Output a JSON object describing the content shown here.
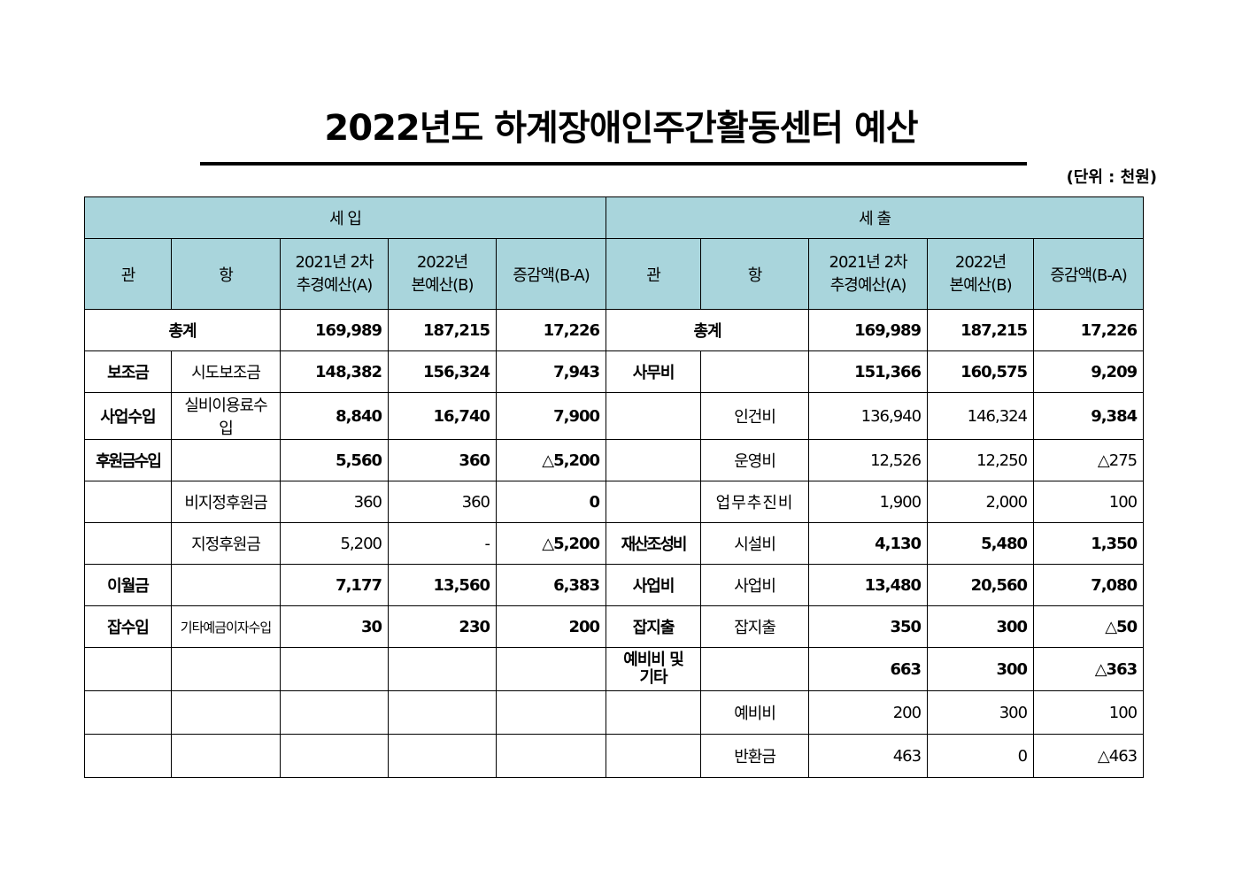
{
  "title": "2022년도 하계장애인주간활동센터 예산",
  "unit": "(단위 : 천원)",
  "headers": {
    "income": "세 입",
    "expense": "세 출",
    "gwan": "관",
    "hang": "항",
    "col_a": "2021년 2차\n추경예산(A)",
    "col_b": "2022년\n본예산(B)",
    "col_diff": "증감액(B-A)"
  },
  "total": {
    "in_label": "총계",
    "in_a": "169,989",
    "in_b": "187,215",
    "in_d": "17,226",
    "out_label": "총계",
    "out_a": "169,989",
    "out_b": "187,215",
    "out_d": "17,226"
  },
  "rows": [
    {
      "ig": "보조금",
      "ih": "시도보조금",
      "ia": "148,382",
      "ib": "156,324",
      "id": "7,943",
      "og": "사무비",
      "oh": "",
      "oa": "151,366",
      "ob": "160,575",
      "od": "9,209"
    },
    {
      "ig": "사업수입",
      "ih": "실비이용료수입",
      "ia": "8,840",
      "ib": "16,740",
      "id": "7,900",
      "og": "",
      "oh": "인건비",
      "oa": "136,940",
      "ob": "146,324",
      "od": "9,384"
    },
    {
      "ig": "후원금수입",
      "ih": "",
      "ia": "5,560",
      "ib": "360",
      "id": "△5,200",
      "og": "",
      "oh": "운영비",
      "oa": "12,526",
      "ob": "12,250",
      "od": "△275"
    },
    {
      "ig": "",
      "ih": "비지정후원금",
      "ia": "360",
      "ib": "360",
      "id": "0",
      "og": "",
      "oh": "업무추진비",
      "oa": "1,900",
      "ob": "2,000",
      "od": "100"
    },
    {
      "ig": "",
      "ih": "지정후원금",
      "ia": "5,200",
      "ib": "-",
      "id": "△5,200",
      "og": "재산조성비",
      "oh": "시설비",
      "oa": "4,130",
      "ob": "5,480",
      "od": "1,350"
    },
    {
      "ig": "이월금",
      "ih": "",
      "ia": "7,177",
      "ib": "13,560",
      "id": "6,383",
      "og": "사업비",
      "oh": "사업비",
      "oa": "13,480",
      "ob": "20,560",
      "od": "7,080"
    },
    {
      "ig": "잡수입",
      "ih": "기타예금이자수입",
      "ia": "30",
      "ib": "230",
      "id": "200",
      "og": "잡지출",
      "oh": "잡지출",
      "oa": "350",
      "ob": "300",
      "od": "△50"
    },
    {
      "ig": "",
      "ih": "",
      "ia": "",
      "ib": "",
      "id": "",
      "og": "예비비 및\n기타",
      "oh": "",
      "oa": "663",
      "ob": "300",
      "od": "△363"
    },
    {
      "ig": "",
      "ih": "",
      "ia": "",
      "ib": "",
      "id": "",
      "og": "",
      "oh": "예비비",
      "oa": "200",
      "ob": "300",
      "od": "100"
    },
    {
      "ig": "",
      "ih": "",
      "ia": "",
      "ib": "",
      "id": "",
      "og": "",
      "oh": "반환금",
      "oa": "463",
      "ob": "0",
      "od": "△463"
    }
  ]
}
